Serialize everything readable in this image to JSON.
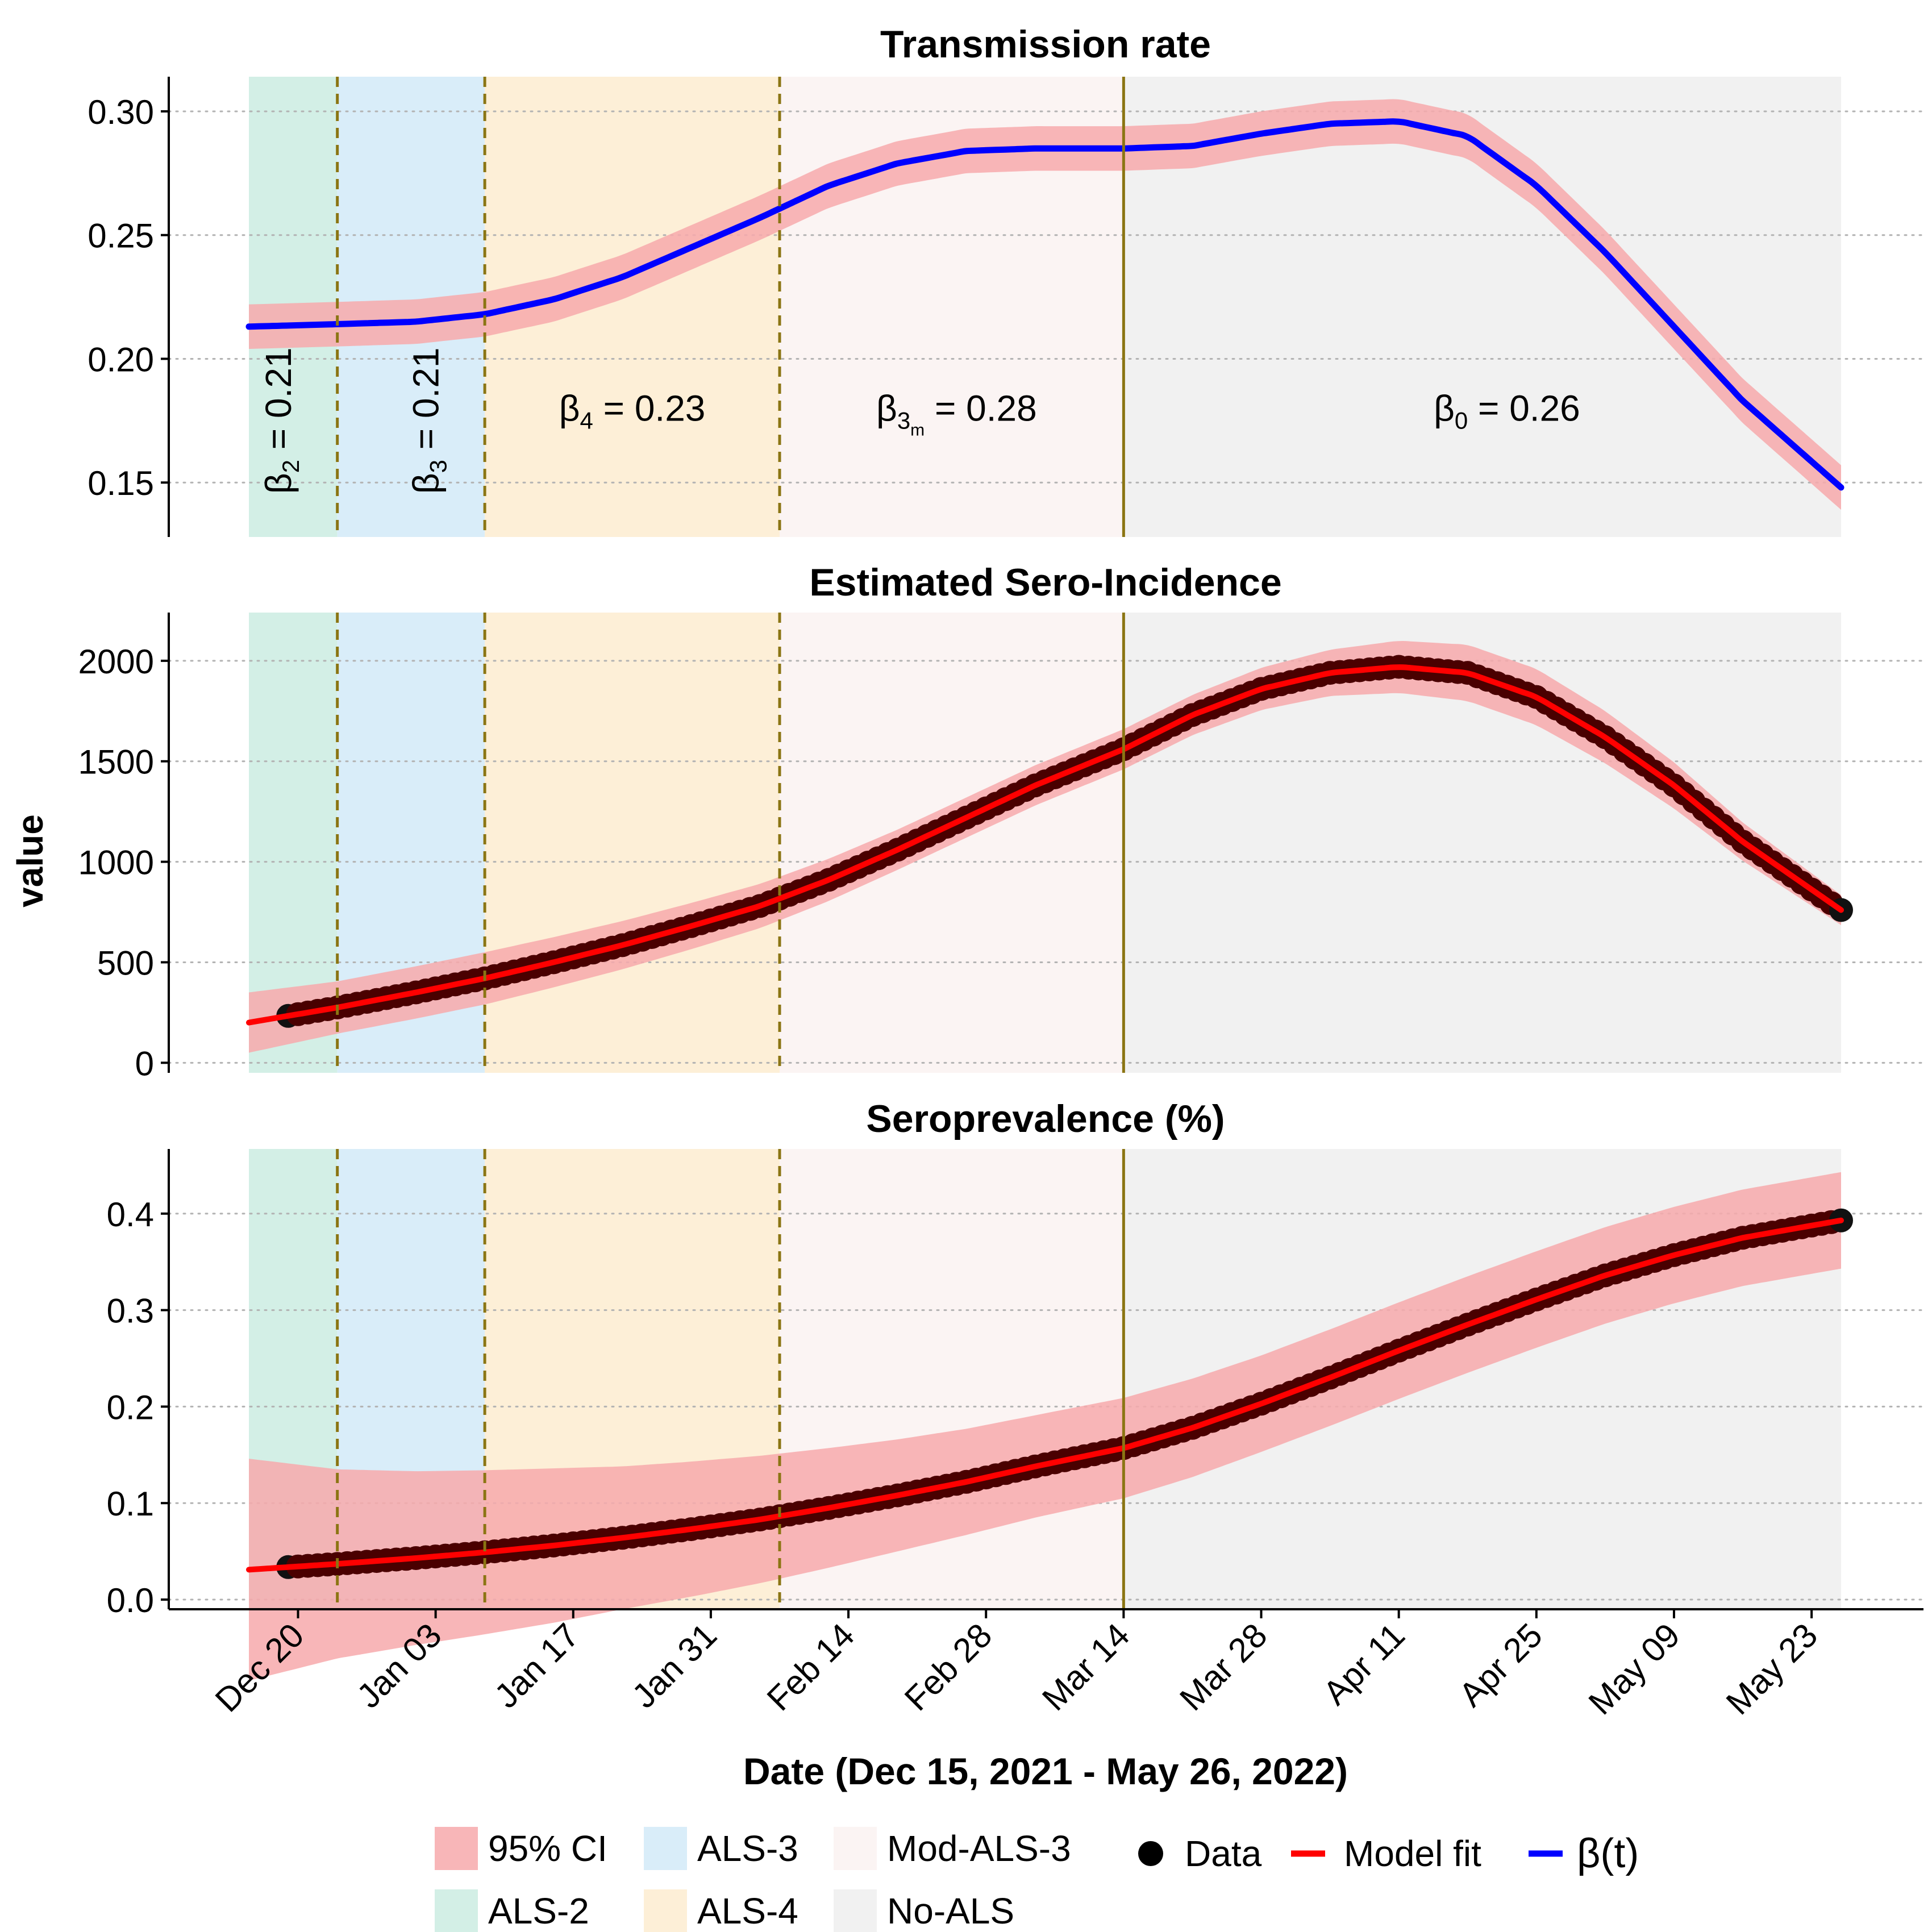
{
  "figure": {
    "xlabel": "Date (Dec 15, 2021 - May 26, 2022)",
    "ylabel": "value",
    "x_range": [
      "2021-12-15",
      "2022-05-26"
    ],
    "x_ticks": [
      "Dec 20",
      "Jan 03",
      "Jan 17",
      "Jan 31",
      "Feb 14",
      "Feb 28",
      "Mar 14",
      "Mar 28",
      "Apr 11",
      "Apr 25",
      "May 09",
      "May 23"
    ],
    "x_tick_dates": [
      "2021-12-20",
      "2022-01-03",
      "2022-01-17",
      "2022-01-31",
      "2022-02-14",
      "2022-02-28",
      "2022-03-14",
      "2022-03-28",
      "2022-04-11",
      "2022-04-25",
      "2022-05-09",
      "2022-05-23"
    ],
    "phases": [
      {
        "name": "ALS-2",
        "start": "2021-12-15",
        "end": "2021-12-24",
        "color": "#d3efe6"
      },
      {
        "name": "ALS-3",
        "start": "2021-12-24",
        "end": "2022-01-08",
        "color": "#d9edf9"
      },
      {
        "name": "ALS-4",
        "start": "2022-01-08",
        "end": "2022-02-07",
        "color": "#fdefd7"
      },
      {
        "name": "Mod-ALS-3",
        "start": "2022-02-07",
        "end": "2022-03-14",
        "color": "#fbf4f3"
      },
      {
        "name": "No-ALS",
        "start": "2022-03-14",
        "end": "2022-05-26",
        "color": "#f1f1f1"
      }
    ],
    "boundary_color": "#8b7513",
    "colors": {
      "ci": "#f7a9ab",
      "data": "#4a0000",
      "model_fit": "#ff0000",
      "beta": "#0000ff"
    }
  },
  "legend": {
    "items": [
      {
        "label": "95% CI",
        "color": "#f7a9ab"
      },
      {
        "label": "ALS-2",
        "color": "#d3efe6"
      },
      {
        "label": "ALS-3",
        "color": "#d9edf9"
      },
      {
        "label": "ALS-4",
        "color": "#fdefd7"
      },
      {
        "label": "Mod-ALS-3",
        "color": "#fbf4f3"
      },
      {
        "label": "No-ALS",
        "color": "#f1f1f1"
      },
      {
        "label": "Data",
        "color": "#000000"
      },
      {
        "label": "Model fit",
        "color": "#ff0000"
      },
      {
        "label": "β(t)",
        "color": "#0000ff"
      }
    ]
  },
  "chart_data": [
    {
      "type": "line",
      "title": "Transmission rate",
      "ylim": [
        0.128,
        0.314
      ],
      "y_ticks": [
        "0.15",
        "0.20",
        "0.25",
        "0.30"
      ],
      "series": [
        {
          "name": "β(t)",
          "kind": "line",
          "x": [
            "2021-12-15",
            "2021-12-24",
            "2022-01-01",
            "2022-01-08",
            "2022-01-15",
            "2022-01-22",
            "2022-01-29",
            "2022-02-05",
            "2022-02-12",
            "2022-02-19",
            "2022-02-26",
            "2022-03-05",
            "2022-03-14",
            "2022-03-21",
            "2022-03-28",
            "2022-04-04",
            "2022-04-11",
            "2022-04-18",
            "2022-04-25",
            "2022-05-02",
            "2022-05-09",
            "2022-05-16",
            "2022-05-26"
          ],
          "y": [
            0.213,
            0.214,
            0.215,
            0.218,
            0.224,
            0.233,
            0.245,
            0.257,
            0.27,
            0.279,
            0.284,
            0.285,
            0.285,
            0.286,
            0.291,
            0.295,
            0.296,
            0.29,
            0.27,
            0.243,
            0.213,
            0.183,
            0.148
          ]
        }
      ],
      "ci_halfwidth": 0.009,
      "annotations": [
        {
          "label": "β2 = 0.21",
          "base": "β",
          "sub": "2",
          "value": "= 0.21",
          "x": "2021-12-18",
          "y": 0.175,
          "rotate": true
        },
        {
          "label": "β3 = 0.21",
          "base": "β",
          "sub": "3",
          "value": "= 0.21",
          "x": "2022-01-02",
          "y": 0.175,
          "rotate": true
        },
        {
          "label": "β4 = 0.23",
          "base": "β",
          "sub": "4",
          "value": "= 0.23",
          "x": "2022-01-23",
          "y": 0.18,
          "rotate": false
        },
        {
          "label": "β3m = 0.28",
          "base": "β",
          "sub": "3",
          "subsub": "m",
          "value": "= 0.28",
          "x": "2022-02-25",
          "y": 0.18,
          "rotate": false
        },
        {
          "label": "β0 = 0.26",
          "base": "β",
          "sub": "0",
          "value": "= 0.26",
          "x": "2022-04-22",
          "y": 0.18,
          "rotate": false
        }
      ]
    },
    {
      "type": "line",
      "title": "Estimated Sero-Incidence",
      "ylim": [
        -50,
        2240
      ],
      "y_ticks": [
        "0",
        "500",
        "1000",
        "1500",
        "2000"
      ],
      "series": [
        {
          "name": "Data",
          "kind": "points",
          "x_start": "2021-12-19",
          "x_end": "2022-05-26"
        },
        {
          "name": "Model fit",
          "kind": "line",
          "x": [
            "2021-12-15",
            "2021-12-24",
            "2022-01-01",
            "2022-01-08",
            "2022-01-15",
            "2022-01-22",
            "2022-01-29",
            "2022-02-05",
            "2022-02-12",
            "2022-02-19",
            "2022-02-26",
            "2022-03-05",
            "2022-03-14",
            "2022-03-21",
            "2022-03-28",
            "2022-04-04",
            "2022-04-11",
            "2022-04-18",
            "2022-04-25",
            "2022-05-02",
            "2022-05-09",
            "2022-05-16",
            "2022-05-26"
          ],
          "y": [
            200,
            275,
            350,
            420,
            500,
            585,
            680,
            780,
            910,
            1060,
            1220,
            1380,
            1560,
            1730,
            1860,
            1940,
            1970,
            1940,
            1820,
            1620,
            1380,
            1100,
            760
          ]
        }
      ],
      "ci_halfwidth": [
        150,
        130,
        130,
        130,
        125,
        120,
        115,
        110,
        105,
        100,
        100,
        100,
        100,
        100,
        105,
        115,
        130,
        140,
        140,
        130,
        115,
        95,
        75
      ],
      "ci_x_start": "2021-12-15"
    },
    {
      "type": "line",
      "title": "Seroprevalence (%)",
      "ylim": [
        -0.01,
        0.467
      ],
      "y_ticks": [
        "0.0",
        "0.1",
        "0.2",
        "0.3",
        "0.4"
      ],
      "series": [
        {
          "name": "Data",
          "kind": "points",
          "x_start": "2021-12-19",
          "x_end": "2022-05-26"
        },
        {
          "name": "Model fit",
          "kind": "line",
          "x": [
            "2021-12-15",
            "2021-12-24",
            "2022-01-01",
            "2022-01-08",
            "2022-01-15",
            "2022-01-22",
            "2022-01-29",
            "2022-02-05",
            "2022-02-12",
            "2022-02-19",
            "2022-02-26",
            "2022-03-05",
            "2022-03-14",
            "2022-03-21",
            "2022-03-28",
            "2022-04-04",
            "2022-04-11",
            "2022-04-18",
            "2022-04-25",
            "2022-05-02",
            "2022-05-09",
            "2022-05-16",
            "2022-05-26"
          ],
          "y": [
            0.031,
            0.037,
            0.043,
            0.049,
            0.056,
            0.064,
            0.073,
            0.083,
            0.095,
            0.108,
            0.122,
            0.138,
            0.157,
            0.178,
            0.203,
            0.23,
            0.258,
            0.285,
            0.311,
            0.336,
            0.357,
            0.375,
            0.393
          ]
        }
      ],
      "ci_halfwidth": [
        0.115,
        0.098,
        0.09,
        0.085,
        0.08,
        0.074,
        0.07,
        0.066,
        0.062,
        0.058,
        0.055,
        0.053,
        0.052,
        0.051,
        0.05,
        0.05,
        0.05,
        0.05,
        0.05,
        0.05,
        0.05,
        0.05,
        0.05
      ]
    }
  ]
}
